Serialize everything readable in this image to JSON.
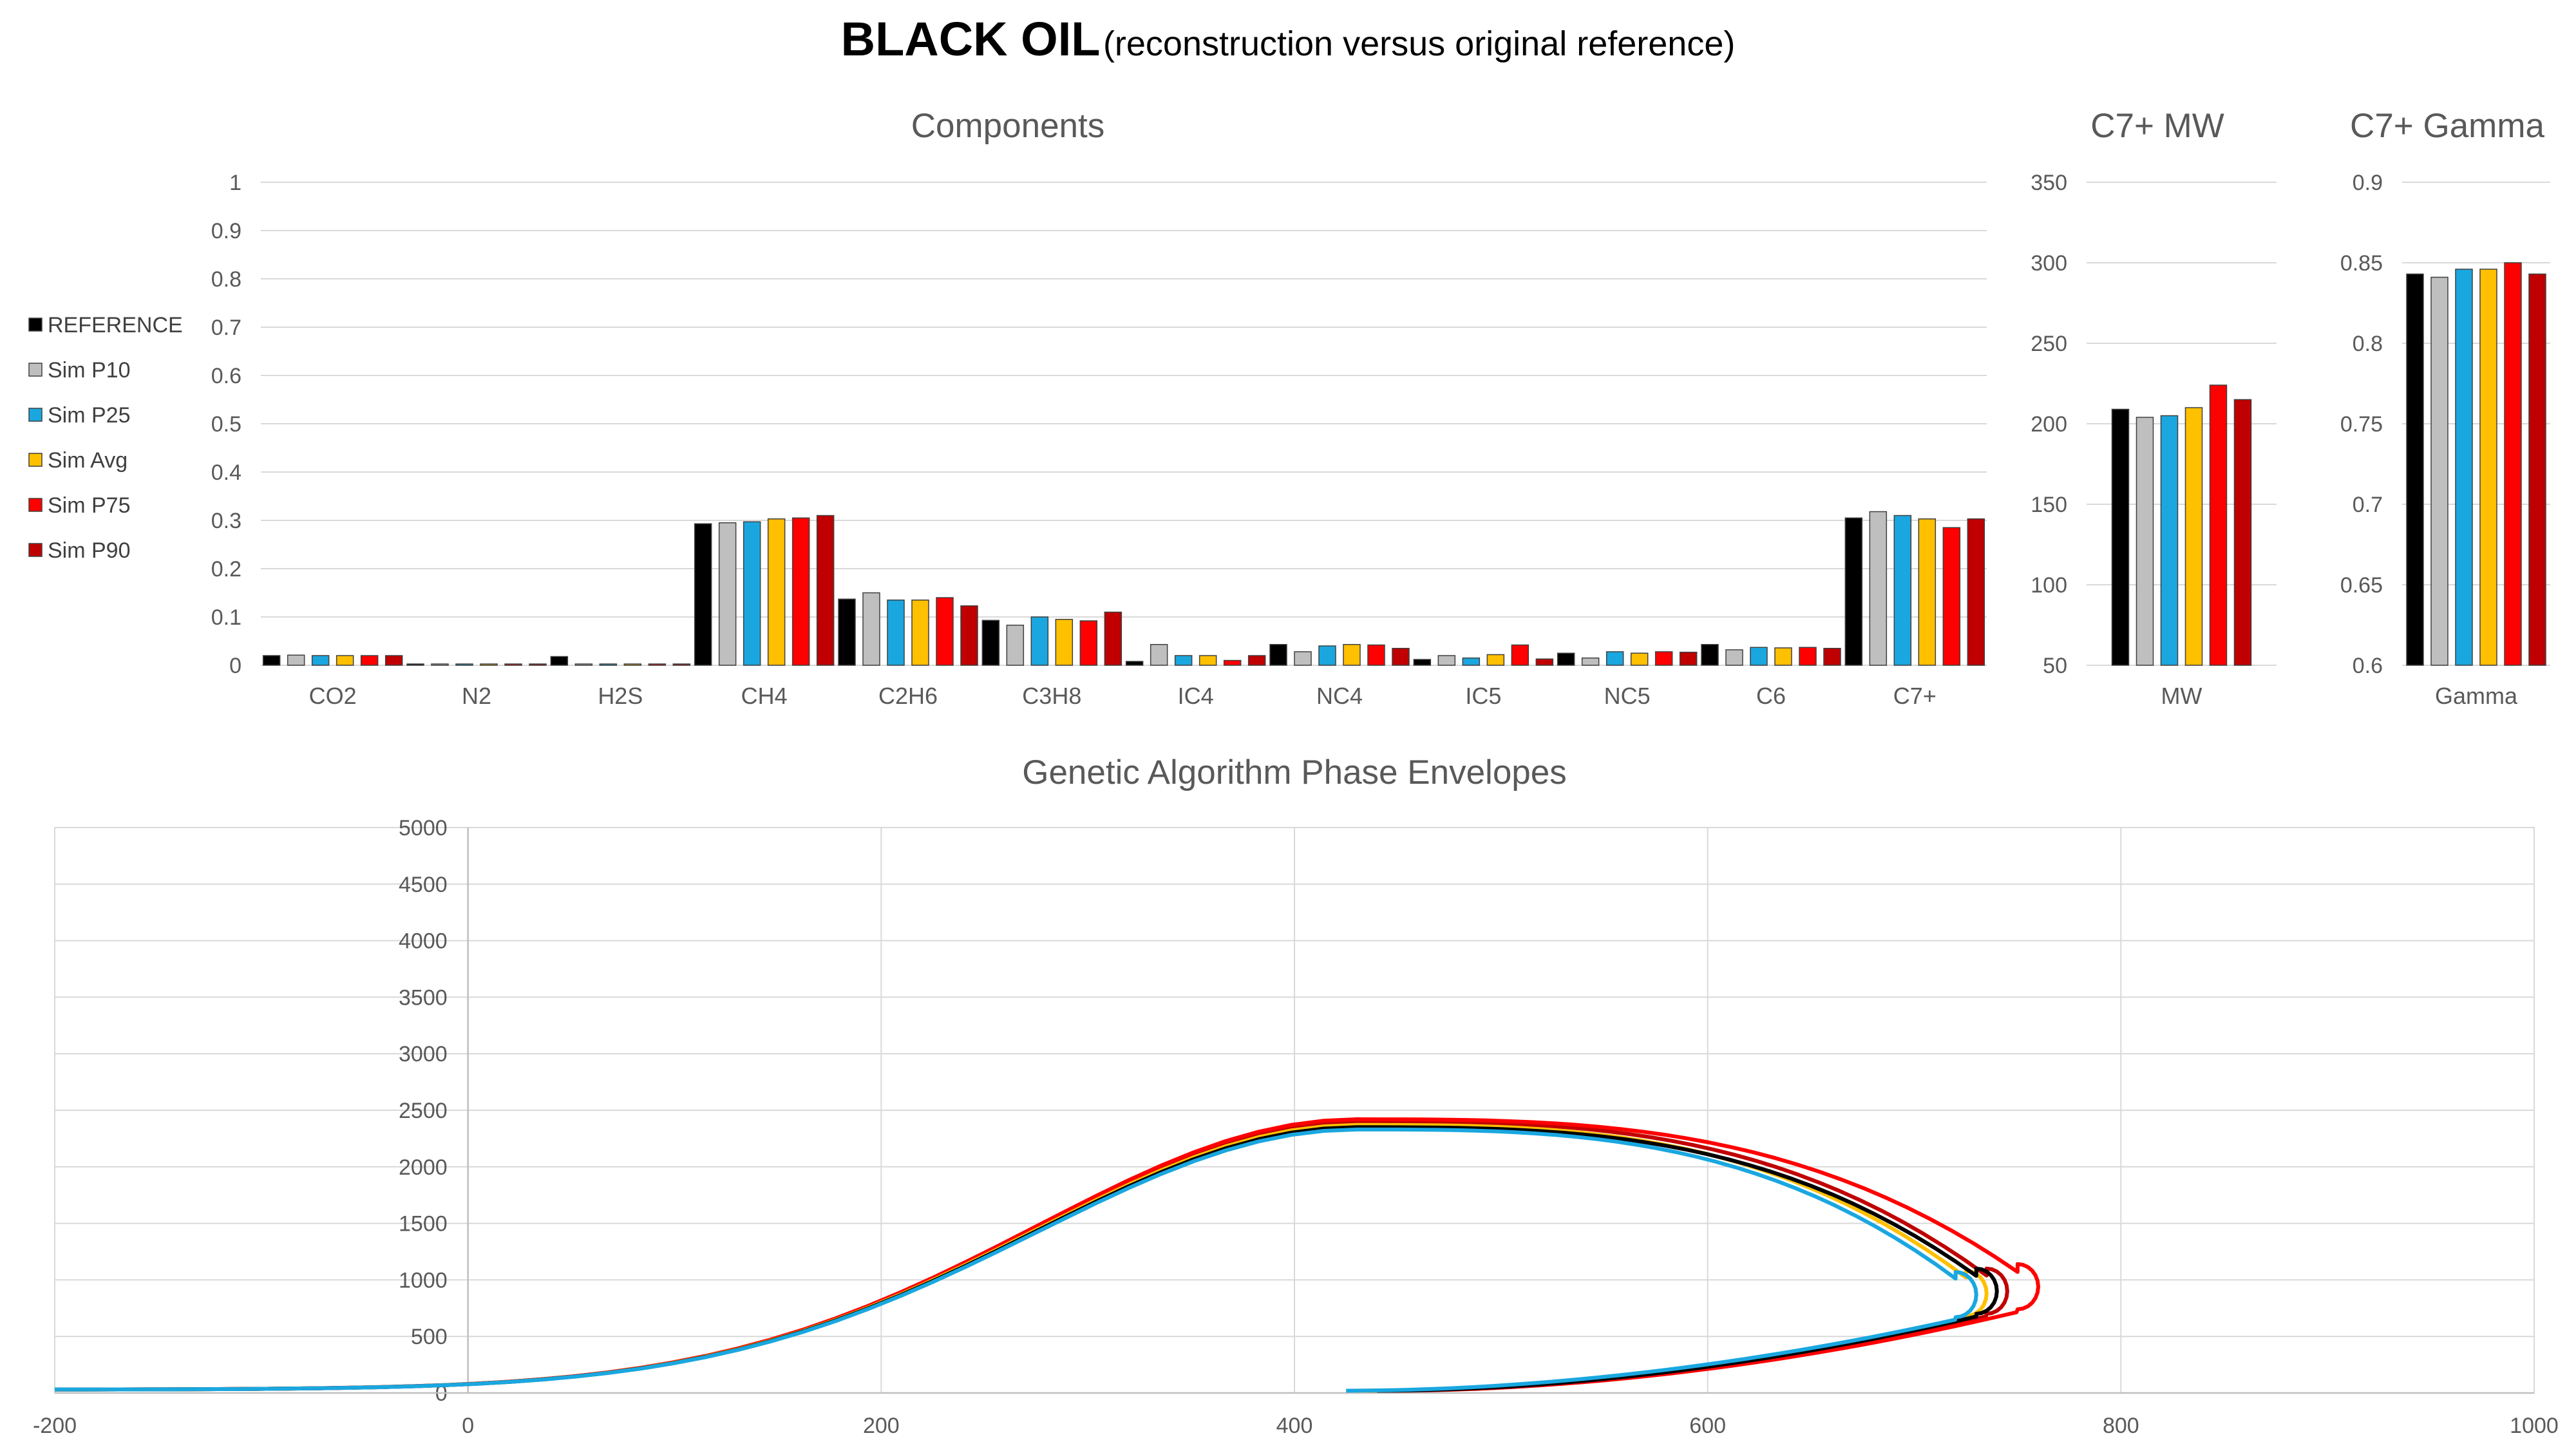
{
  "title": {
    "main": "BLACK OIL",
    "sub": "(reconstruction versus original reference)"
  },
  "series": [
    {
      "name": "REFERENCE",
      "color": "#000000"
    },
    {
      "name": "Sim P10",
      "color": "#BFBFBF"
    },
    {
      "name": "Sim P25",
      "color": "#1AA7E0"
    },
    {
      "name": "Sim Avg",
      "color": "#FFC000"
    },
    {
      "name": "Sim P75",
      "color": "#FF0000"
    },
    {
      "name": "Sim P90",
      "color": "#C00000"
    }
  ],
  "chart_data": [
    {
      "id": "components",
      "type": "bar",
      "title": "Components",
      "categories": [
        "CO2",
        "N2",
        "H2S",
        "CH4",
        "C2H6",
        "C3H8",
        "IC4",
        "NC4",
        "IC5",
        "NC5",
        "C6",
        "C7+"
      ],
      "ylim": [
        0,
        1
      ],
      "yticks": [
        "0",
        "0.1",
        "0.2",
        "0.3",
        "0.4",
        "0.5",
        "0.6",
        "0.7",
        "0.8",
        "0.9",
        "1"
      ],
      "grid": true,
      "legend": "left",
      "series": [
        {
          "name": "REFERENCE",
          "values": [
            0.02,
            0.0,
            0.018,
            0.293,
            0.137,
            0.093,
            0.008,
            0.043,
            0.012,
            0.025,
            0.043,
            0.305
          ]
        },
        {
          "name": "Sim P10",
          "values": [
            0.021,
            0.002,
            0.0,
            0.295,
            0.15,
            0.083,
            0.043,
            0.028,
            0.02,
            0.015,
            0.032,
            0.318
          ]
        },
        {
          "name": "Sim P25",
          "values": [
            0.02,
            0.002,
            0.0,
            0.297,
            0.135,
            0.1,
            0.02,
            0.04,
            0.015,
            0.028,
            0.037,
            0.31
          ]
        },
        {
          "name": "Sim Avg",
          "values": [
            0.02,
            0.002,
            0.0,
            0.303,
            0.135,
            0.095,
            0.02,
            0.043,
            0.022,
            0.025,
            0.036,
            0.303
          ]
        },
        {
          "name": "Sim P75",
          "values": [
            0.02,
            0.002,
            0.0,
            0.305,
            0.14,
            0.092,
            0.01,
            0.042,
            0.042,
            0.028,
            0.037,
            0.285
          ]
        },
        {
          "name": "Sim P90",
          "values": [
            0.02,
            0.002,
            0.0,
            0.31,
            0.123,
            0.11,
            0.02,
            0.035,
            0.013,
            0.027,
            0.035,
            0.303
          ]
        }
      ]
    },
    {
      "id": "mw",
      "type": "bar",
      "title": "C7+ MW",
      "categories": [
        "MW"
      ],
      "ylim": [
        50,
        350
      ],
      "yticks": [
        "50",
        "100",
        "150",
        "200",
        "250",
        "300",
        "350"
      ],
      "grid": true,
      "series": [
        {
          "name": "REFERENCE",
          "values": [
            209
          ]
        },
        {
          "name": "Sim P10",
          "values": [
            204
          ]
        },
        {
          "name": "Sim P25",
          "values": [
            205
          ]
        },
        {
          "name": "Sim Avg",
          "values": [
            210
          ]
        },
        {
          "name": "Sim P75",
          "values": [
            224
          ]
        },
        {
          "name": "Sim P90",
          "values": [
            215
          ]
        }
      ]
    },
    {
      "id": "gamma",
      "type": "bar",
      "title": "C7+ Gamma",
      "categories": [
        "Gamma"
      ],
      "ylim": [
        0.6,
        0.9
      ],
      "yticks": [
        "0.6",
        "0.65",
        "0.7",
        "0.75",
        "0.8",
        "0.85",
        "0.9"
      ],
      "grid": true,
      "series": [
        {
          "name": "REFERENCE",
          "values": [
            0.843
          ]
        },
        {
          "name": "Sim P10",
          "values": [
            0.841
          ]
        },
        {
          "name": "Sim P25",
          "values": [
            0.846
          ]
        },
        {
          "name": "Sim Avg",
          "values": [
            0.846
          ]
        },
        {
          "name": "Sim P75",
          "values": [
            0.85
          ]
        },
        {
          "name": "Sim P90",
          "values": [
            0.843
          ]
        }
      ]
    },
    {
      "id": "envelopes",
      "type": "line",
      "title": "Genetic Algorithm Phase Envelopes",
      "xlim": [
        -200,
        1000
      ],
      "ylim": [
        0,
        5000
      ],
      "xticks": [
        "-200",
        "0",
        "200",
        "400",
        "600",
        "800",
        "1000"
      ],
      "yticks": [
        "0",
        "500",
        "1000",
        "1500",
        "2000",
        "2500",
        "3000",
        "3500",
        "4000",
        "4500",
        "5000"
      ],
      "grid": true,
      "series": [
        {
          "name": "Sim P90",
          "tmax": 745,
          "pcrit": 2400,
          "tmin": 435,
          "tmaxP": 900
        },
        {
          "name": "Sim P75",
          "tmax": 760,
          "pcrit": 2420,
          "tmin": 445,
          "tmaxP": 940
        },
        {
          "name": "Sim Avg",
          "tmax": 735,
          "pcrit": 2370,
          "tmin": 430,
          "tmaxP": 880
        },
        {
          "name": "REFERENCE",
          "tmax": 740,
          "pcrit": 2350,
          "tmin": 440,
          "tmaxP": 900
        },
        {
          "name": "Sim P25",
          "tmax": 730,
          "pcrit": 2330,
          "tmin": 425,
          "tmaxP": 870
        }
      ]
    }
  ]
}
